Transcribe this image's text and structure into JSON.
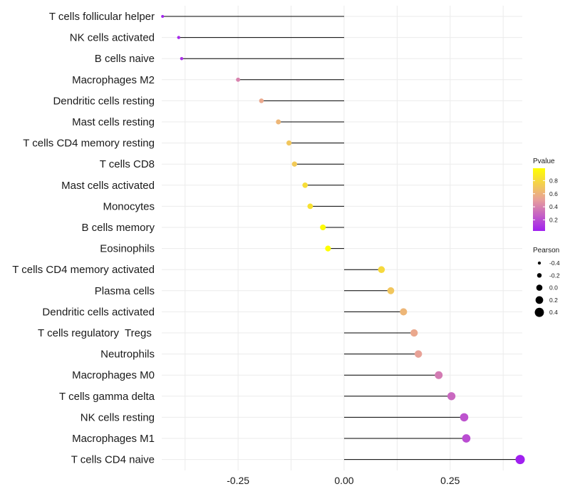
{
  "chart_data": {
    "type": "lollipop",
    "title": "",
    "xlabel": "",
    "ylabel": "",
    "xlim": [
      -0.43,
      0.42
    ],
    "x_ticks": [
      -0.25,
      0.0,
      0.25
    ],
    "x_tick_labels": [
      "-0.25",
      "0.00",
      "0.25"
    ],
    "grid": true,
    "categories": [
      "T cells follicular helper",
      "NK cells activated",
      "B cells naive",
      "Macrophages M2",
      "Dendritic cells resting",
      "Mast cells resting",
      "T cells CD4 memory resting",
      "T cells CD8",
      "Mast cells activated",
      "Monocytes",
      "B cells memory",
      "Eosinophils",
      "T cells CD4 memory activated",
      "Plasma cells",
      "Dendritic cells activated",
      "T cells regulatory  Tregs ",
      "Neutrophils",
      "Macrophages M0",
      "T cells gamma delta",
      "NK cells resting",
      "Macrophages M1",
      "T cells CD4 naive"
    ],
    "pearson": [
      -0.428,
      -0.39,
      -0.383,
      -0.25,
      -0.195,
      -0.155,
      -0.13,
      -0.117,
      -0.092,
      -0.08,
      -0.05,
      -0.038,
      0.088,
      0.11,
      0.14,
      0.165,
      0.175,
      0.223,
      0.253,
      0.283,
      0.288,
      0.415
    ],
    "pvalue": [
      0.04,
      0.07,
      0.09,
      0.4,
      0.55,
      0.62,
      0.7,
      0.72,
      0.82,
      0.84,
      0.97,
      0.99,
      0.8,
      0.7,
      0.62,
      0.55,
      0.52,
      0.37,
      0.3,
      0.22,
      0.2,
      0.03
    ],
    "legends": {
      "color": {
        "title": "Pvalue",
        "ticks": [
          0.8,
          0.6,
          0.4,
          0.2
        ],
        "tick_labels": [
          "0.8",
          "0.6",
          "0.4",
          "0.2"
        ],
        "range": [
          0.03,
          0.99
        ],
        "low_color": "#a020f0",
        "mid_color": "#e8a09a",
        "high_color": "#ffff00",
        "position": "right"
      },
      "size": {
        "title": "Pearson",
        "values": [
          -0.4,
          -0.2,
          0.0,
          0.2,
          0.4
        ],
        "labels": [
          "-0.4",
          "-0.2",
          "0.0",
          "0.2",
          "0.4"
        ],
        "point_color": "#000000",
        "position": "right"
      }
    }
  }
}
